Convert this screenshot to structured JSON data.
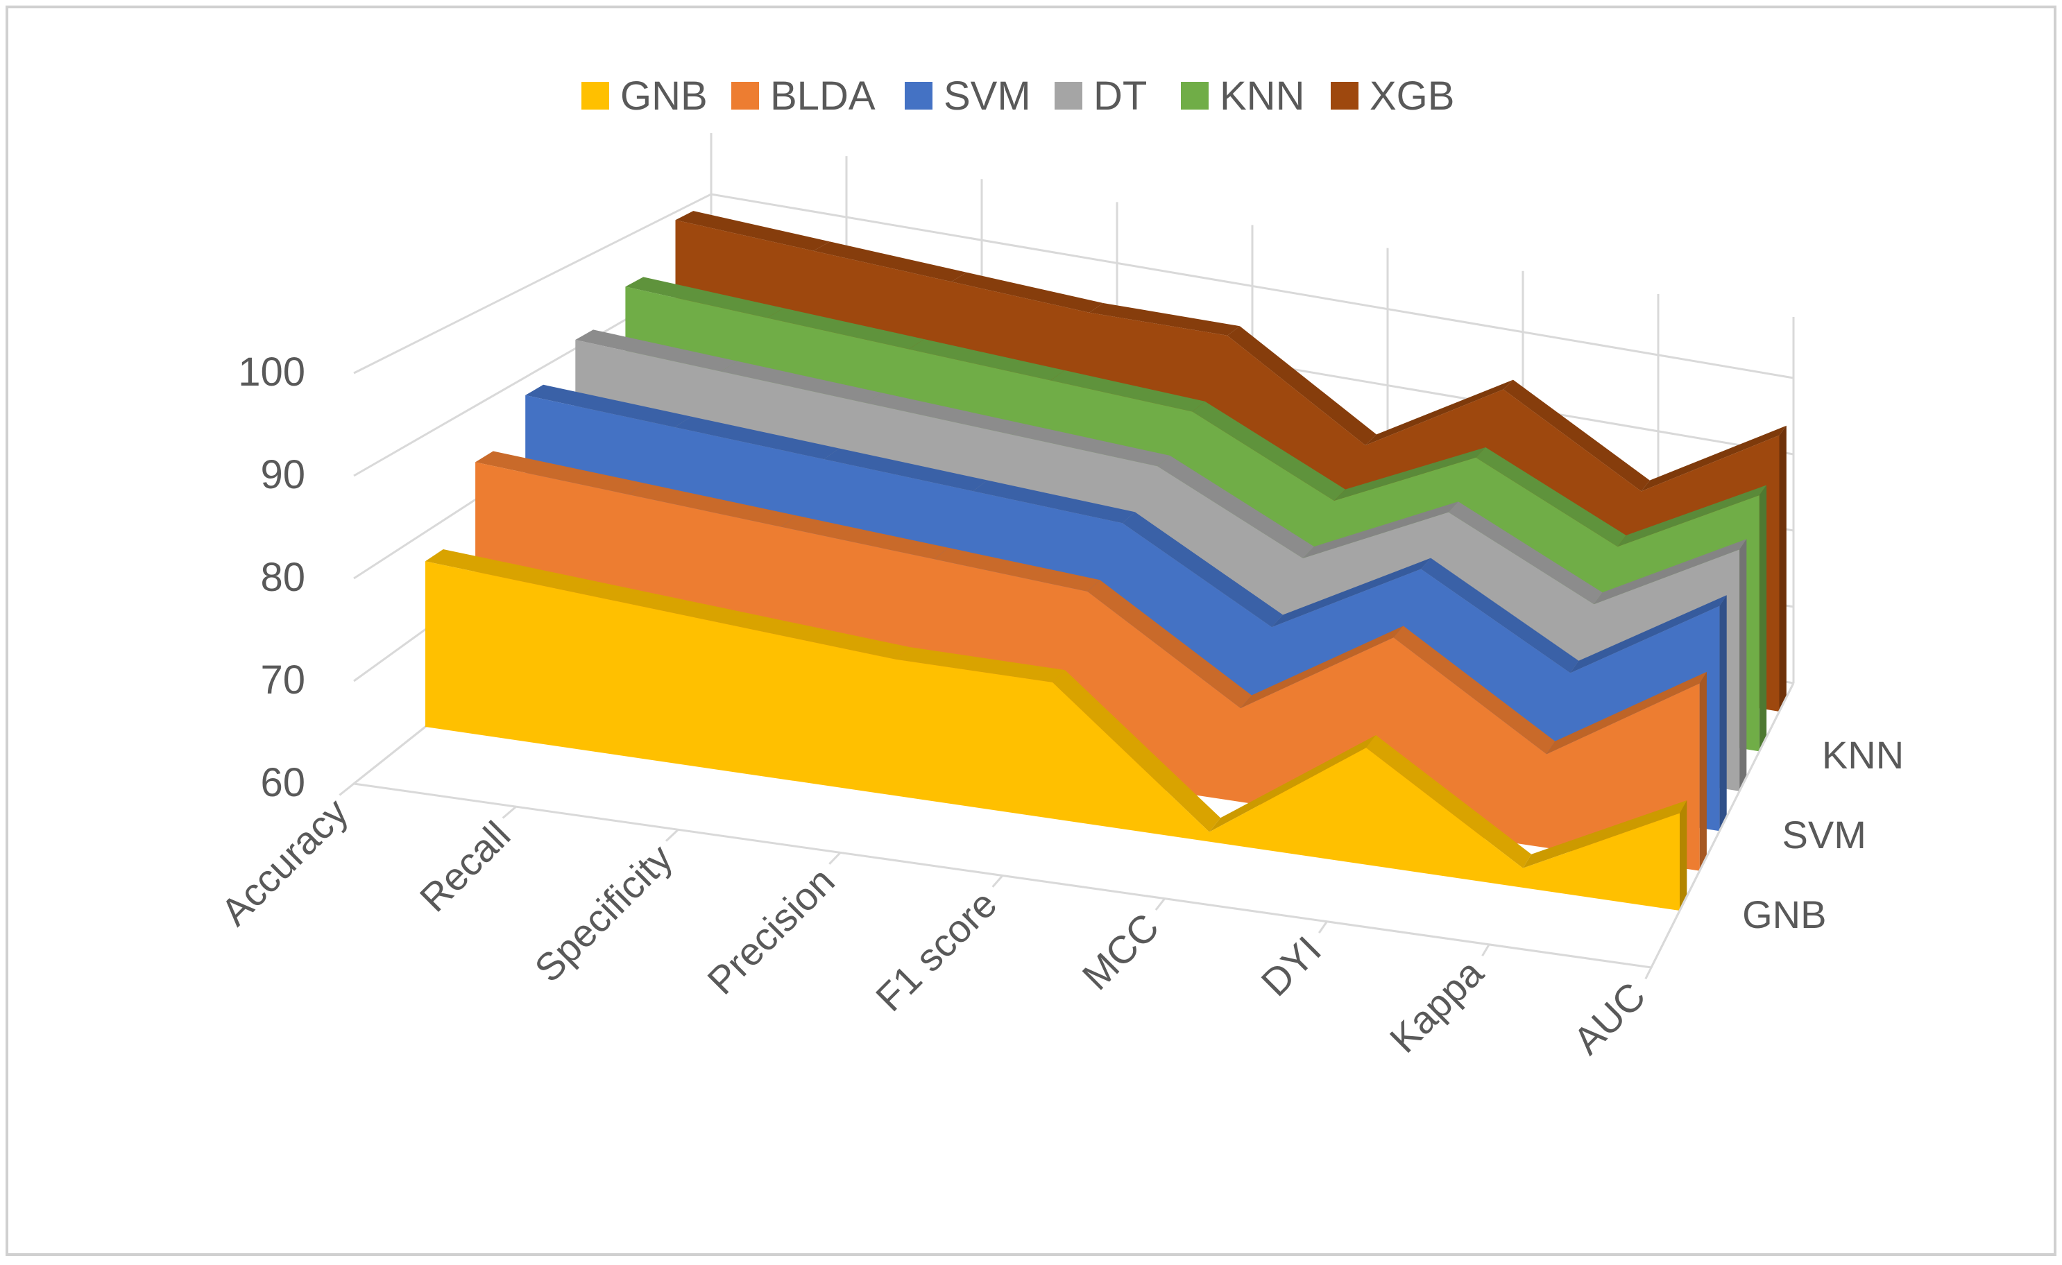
{
  "chart_data": {
    "type": "area",
    "variant": "3d-area",
    "title": "",
    "categories": [
      "Accuracy",
      "Recall",
      "Specificity",
      "Precision",
      "F1 score",
      "MCC",
      "DYI",
      "Kappa",
      "AUC"
    ],
    "series": [
      {
        "name": "GNB",
        "color": "#FFC000",
        "values": [
          77,
          76,
          75,
          74,
          74,
          61,
          72,
          62,
          70
        ]
      },
      {
        "name": "BLDA",
        "color": "#ED7D31",
        "values": [
          84,
          83,
          82,
          81,
          80,
          70,
          80,
          70,
          80
        ]
      },
      {
        "name": "SVM",
        "color": "#4472C4",
        "values": [
          88,
          87,
          86,
          85,
          84,
          75,
          84,
          75,
          85
        ]
      },
      {
        "name": "DT",
        "color": "#A5A5A5",
        "values": [
          91,
          90,
          89,
          88,
          87,
          79,
          87,
          79,
          88
        ]
      },
      {
        "name": "KNN",
        "color": "#70AD47",
        "values": [
          94,
          93,
          92,
          91,
          90,
          82,
          90,
          82,
          91
        ]
      },
      {
        "name": "XGB",
        "color": "#9E480E",
        "values": [
          99,
          98,
          97,
          96,
          96,
          85,
          95,
          85,
          95
        ]
      }
    ],
    "y_ticks": [
      "60",
      "70",
      "80",
      "90",
      "100"
    ],
    "ylim": [
      60,
      100
    ],
    "depth_labels": [
      "GNB",
      "SVM",
      "KNN"
    ],
    "legend_position": "top",
    "grid": true,
    "xlabel": "",
    "ylabel": ""
  }
}
